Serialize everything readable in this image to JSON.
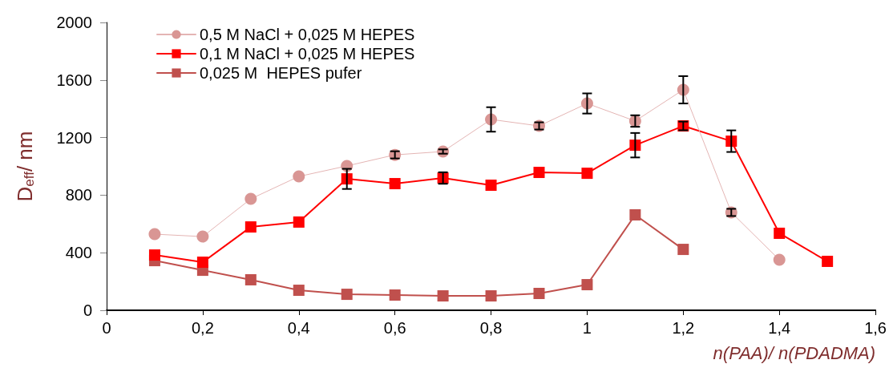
{
  "chart_data": {
    "type": "line",
    "xlabel": "n(PAA)/ n(PDADMA)",
    "ylabel": "D$_{eff}$/ nm",
    "xlim": [
      0,
      1.6
    ],
    "xticks": [
      0,
      {
        "value": 0.2,
        "label": "0,2"
      },
      {
        "value": 0.4,
        "label": "0,4"
      },
      {
        "value": 0.6,
        "label": "0,6"
      },
      {
        "value": 0.8,
        "label": "0,8"
      },
      1,
      {
        "value": 1.2,
        "label": "1,2"
      },
      {
        "value": 1.4,
        "label": "1,4"
      },
      {
        "value": 1.6,
        "label": "1,6"
      }
    ],
    "ylim": [
      0,
      2000
    ],
    "yticks": [
      0,
      400,
      800,
      1200,
      1600,
      2000
    ],
    "grid": false,
    "legend": "top left",
    "series": [
      {
        "name": "0,5 M NaCl + 0,025 M HEPES",
        "color": "#d99694",
        "marker": "circle",
        "x": [
          0.1,
          0.2,
          0.3,
          0.4,
          0.5,
          0.6,
          0.7,
          0.8,
          0.9,
          1.0,
          1.1,
          1.2,
          1.3,
          1.4
        ],
        "values": [
          529,
          512,
          774,
          930,
          1003,
          1080,
          1103,
          1326,
          1281,
          1437,
          1315,
          1532,
          680,
          351
        ],
        "errors": [
          null,
          null,
          null,
          null,
          null,
          25,
          15,
          85,
          25,
          70,
          40,
          95,
          25,
          null
        ]
      },
      {
        "name": "0,1 M NaCl + 0,025 M HEPES",
        "color": "#ff0000",
        "marker": "square",
        "x": [
          0.1,
          0.2,
          0.3,
          0.4,
          0.5,
          0.6,
          0.7,
          0.8,
          0.9,
          1.0,
          1.1,
          1.2,
          1.3,
          1.4,
          1.5
        ],
        "values": [
          384,
          334,
          579,
          613,
          913,
          880,
          919,
          869,
          958,
          952,
          1147,
          1281,
          1175,
          535,
          340
        ],
        "errors": [
          null,
          null,
          null,
          null,
          70,
          null,
          40,
          null,
          null,
          null,
          85,
          30,
          75,
          null,
          null
        ]
      },
      {
        "name": "0,025 M  HEPES pufer",
        "color": "#c0504d",
        "marker": "square",
        "x": [
          0.1,
          0.2,
          0.3,
          0.4,
          0.5,
          0.6,
          0.7,
          0.8,
          0.9,
          1.0,
          1.1,
          1.2
        ],
        "values": [
          345,
          278,
          212,
          139,
          111,
          106,
          100,
          100,
          117,
          178,
          663,
          423
        ]
      }
    ]
  }
}
